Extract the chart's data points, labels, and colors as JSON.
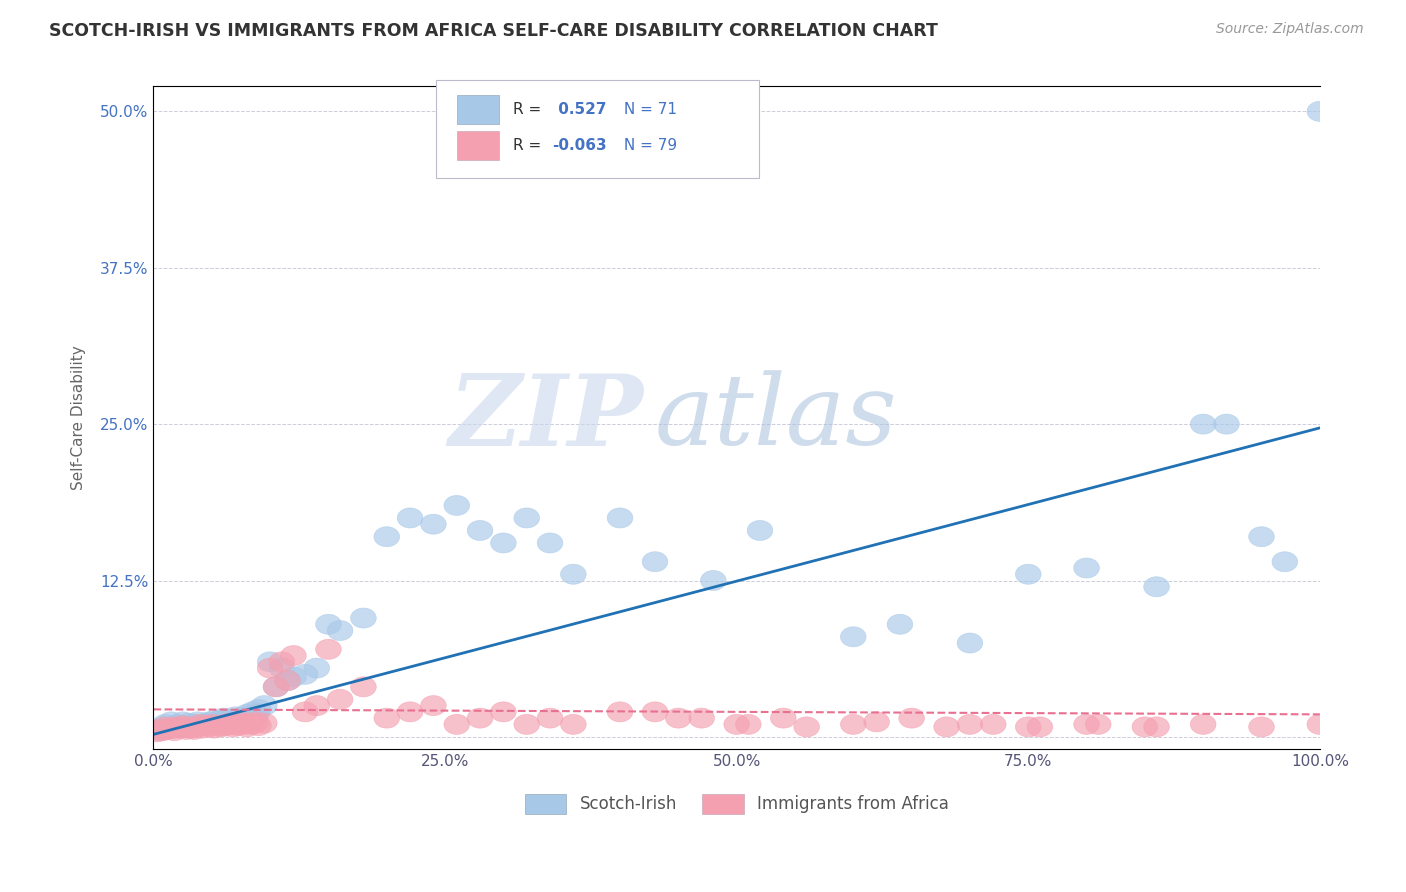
{
  "title": "SCOTCH-IRISH VS IMMIGRANTS FROM AFRICA SELF-CARE DISABILITY CORRELATION CHART",
  "source": "Source: ZipAtlas.com",
  "ylabel": "Self-Care Disability",
  "series1_name": "Scotch-Irish",
  "series2_name": "Immigrants from Africa",
  "series1_color": "#a8c8e8",
  "series2_color": "#f4a0b0",
  "series1_line_color": "#2171b5",
  "series2_line_color": "#e87090",
  "series1_R": 0.527,
  "series1_N": 71,
  "series2_R": -0.063,
  "series2_N": 79,
  "xmin": 0.0,
  "xmax": 1.0,
  "ymin": -0.01,
  "ymax": 0.52,
  "yticks": [
    0.0,
    0.125,
    0.25,
    0.375,
    0.5
  ],
  "ytick_labels": [
    "",
    "12.5%",
    "25.0%",
    "37.5%",
    "50.0%"
  ],
  "xticks": [
    0.0,
    0.25,
    0.5,
    0.75,
    1.0
  ],
  "xtick_labels": [
    "0.0%",
    "25.0%",
    "50.0%",
    "75.0%",
    "100.0%"
  ],
  "background_color": "#ffffff",
  "grid_color": "#c8c8d8",
  "title_color": "#333333",
  "axis_label_color": "#4472c4",
  "tick_label_color": "#555577",
  "watermark_zip": "ZIP",
  "watermark_atlas": "atlas",
  "series1_x": [
    0.005,
    0.008,
    0.01,
    0.012,
    0.015,
    0.015,
    0.018,
    0.02,
    0.022,
    0.025,
    0.028,
    0.03,
    0.032,
    0.035,
    0.038,
    0.04,
    0.042,
    0.045,
    0.048,
    0.05,
    0.052,
    0.055,
    0.058,
    0.06,
    0.062,
    0.065,
    0.068,
    0.07,
    0.072,
    0.075,
    0.078,
    0.08,
    0.082,
    0.085,
    0.088,
    0.09,
    0.095,
    0.1,
    0.105,
    0.11,
    0.115,
    0.12,
    0.13,
    0.14,
    0.15,
    0.16,
    0.18,
    0.2,
    0.22,
    0.24,
    0.26,
    0.28,
    0.3,
    0.32,
    0.34,
    0.36,
    0.4,
    0.43,
    0.48,
    0.52,
    0.6,
    0.64,
    0.7,
    0.75,
    0.8,
    0.86,
    0.9,
    0.92,
    0.95,
    0.97,
    1.0
  ],
  "series1_y": [
    0.005,
    0.008,
    0.01,
    0.006,
    0.008,
    0.012,
    0.007,
    0.01,
    0.009,
    0.012,
    0.008,
    0.011,
    0.009,
    0.01,
    0.012,
    0.01,
    0.009,
    0.011,
    0.012,
    0.01,
    0.013,
    0.012,
    0.013,
    0.015,
    0.012,
    0.014,
    0.013,
    0.016,
    0.014,
    0.015,
    0.016,
    0.018,
    0.016,
    0.02,
    0.018,
    0.022,
    0.025,
    0.06,
    0.04,
    0.055,
    0.045,
    0.048,
    0.05,
    0.055,
    0.09,
    0.085,
    0.095,
    0.16,
    0.175,
    0.17,
    0.185,
    0.165,
    0.155,
    0.175,
    0.155,
    0.13,
    0.175,
    0.14,
    0.125,
    0.165,
    0.08,
    0.09,
    0.075,
    0.13,
    0.135,
    0.12,
    0.25,
    0.25,
    0.16,
    0.14,
    0.5
  ],
  "series2_x": [
    0.003,
    0.005,
    0.008,
    0.01,
    0.012,
    0.015,
    0.018,
    0.02,
    0.022,
    0.025,
    0.028,
    0.03,
    0.032,
    0.035,
    0.038,
    0.04,
    0.042,
    0.045,
    0.048,
    0.05,
    0.052,
    0.055,
    0.058,
    0.06,
    0.062,
    0.065,
    0.068,
    0.07,
    0.072,
    0.075,
    0.078,
    0.08,
    0.082,
    0.085,
    0.088,
    0.09,
    0.095,
    0.1,
    0.105,
    0.11,
    0.115,
    0.12,
    0.13,
    0.14,
    0.15,
    0.16,
    0.18,
    0.2,
    0.22,
    0.24,
    0.26,
    0.28,
    0.3,
    0.32,
    0.34,
    0.36,
    0.4,
    0.45,
    0.5,
    0.54,
    0.6,
    0.65,
    0.7,
    0.75,
    0.8,
    0.85,
    0.9,
    0.95,
    1.0,
    0.43,
    0.47,
    0.51,
    0.56,
    0.62,
    0.68,
    0.72,
    0.76,
    0.81,
    0.86
  ],
  "series2_y": [
    0.004,
    0.006,
    0.005,
    0.008,
    0.006,
    0.007,
    0.005,
    0.008,
    0.007,
    0.009,
    0.006,
    0.008,
    0.007,
    0.006,
    0.008,
    0.01,
    0.007,
    0.009,
    0.008,
    0.01,
    0.007,
    0.009,
    0.008,
    0.01,
    0.009,
    0.011,
    0.008,
    0.01,
    0.009,
    0.012,
    0.01,
    0.008,
    0.011,
    0.01,
    0.012,
    0.009,
    0.011,
    0.055,
    0.04,
    0.06,
    0.045,
    0.065,
    0.02,
    0.025,
    0.07,
    0.03,
    0.04,
    0.015,
    0.02,
    0.025,
    0.01,
    0.015,
    0.02,
    0.01,
    0.015,
    0.01,
    0.02,
    0.015,
    0.01,
    0.015,
    0.01,
    0.015,
    0.01,
    0.008,
    0.01,
    0.008,
    0.01,
    0.008,
    0.01,
    0.02,
    0.015,
    0.01,
    0.008,
    0.012,
    0.008,
    0.01,
    0.008,
    0.01,
    0.008
  ]
}
